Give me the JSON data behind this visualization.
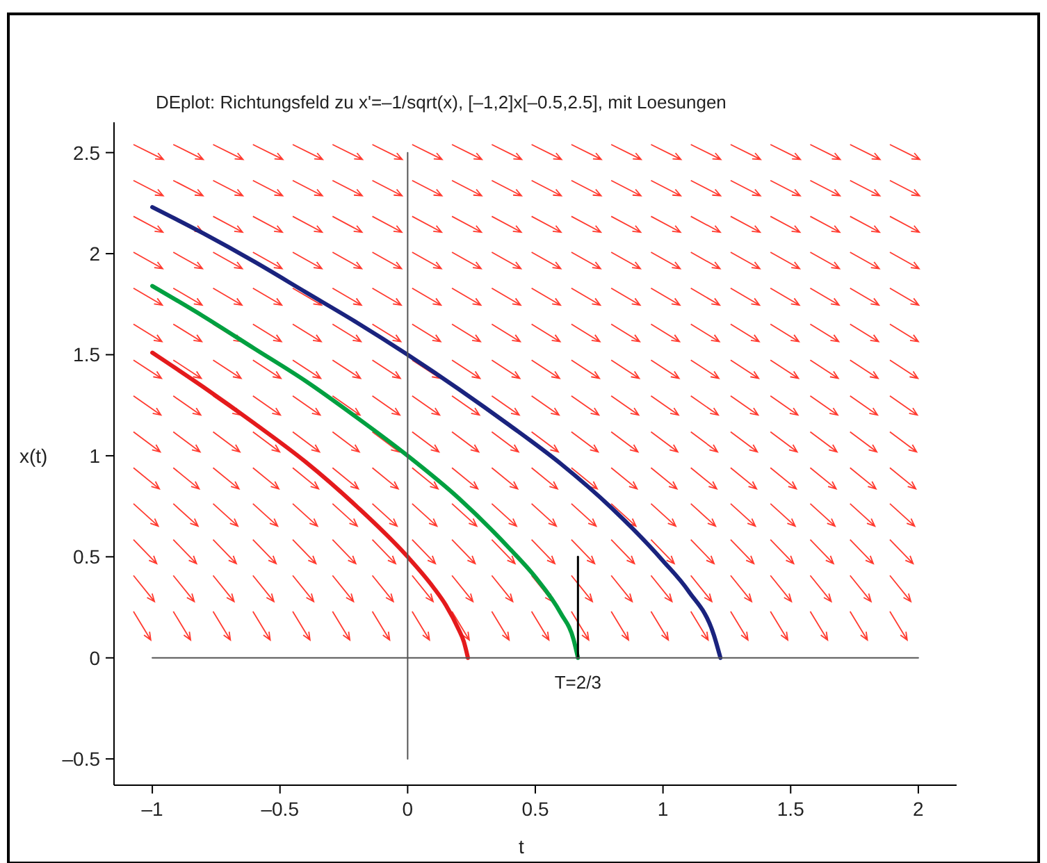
{
  "chart_data": {
    "type": "line",
    "title": "DEplot: Richtungsfeld zu x'=–1/sqrt(x), [–1,2]x[–0.5,2.5], mit Loesungen",
    "xlabel": "t",
    "ylabel": "x(t)",
    "xlim": [
      -1.15,
      2.15
    ],
    "ylim": [
      -0.63,
      2.65
    ],
    "xticks": [
      {
        "value": -1,
        "label": "–1"
      },
      {
        "value": -0.5,
        "label": "–0.5"
      },
      0,
      0.5,
      1,
      1.5,
      2
    ],
    "yticks": [
      {
        "value": -0.5,
        "label": "–0.5"
      },
      0,
      0.5,
      1,
      1.5,
      2,
      2.5
    ],
    "grid": false,
    "line_style": "solid",
    "annotations": [
      {
        "text": "T=2/3",
        "x": 0.667,
        "y": 0
      }
    ],
    "series": [
      {
        "color": "#e41a1c",
        "x": [
          -1,
          -0.8,
          -0.6,
          -0.4,
          -0.2,
          0,
          0.1,
          0.15,
          0.2,
          0.22,
          0.236
        ],
        "values": [
          1.51,
          1.34,
          1.16,
          0.97,
          0.75,
          0.5,
          0.35,
          0.26,
          0.14,
          0.08,
          0
        ]
      },
      {
        "color": "#00a040",
        "x": [
          -1,
          -0.8,
          -0.6,
          -0.4,
          -0.2,
          0,
          0.2,
          0.4,
          0.5,
          0.6,
          0.65,
          0.667
        ],
        "values": [
          1.84,
          1.69,
          1.53,
          1.37,
          1.19,
          1,
          0.79,
          0.54,
          0.4,
          0.22,
          0.09,
          0
        ]
      },
      {
        "color": "#1a237e",
        "x": [
          -1,
          -0.8,
          -0.6,
          -0.4,
          -0.2,
          0,
          0.2,
          0.4,
          0.6,
          0.8,
          1,
          1.1,
          1.2,
          1.225
        ],
        "values": [
          2.23,
          2.1,
          1.96,
          1.81,
          1.66,
          1.5,
          1.33,
          1.15,
          0.96,
          0.74,
          0.48,
          0.33,
          0.11,
          0
        ]
      },
      {
        "color": "#000000",
        "x": [
          0.667,
          0.667
        ],
        "values": [
          0,
          0.5
        ]
      },
      {
        "color": "#555555",
        "x": [
          -1,
          2
        ],
        "values": [
          0,
          0
        ]
      },
      {
        "color": "#555555",
        "x": [
          0,
          0
        ],
        "values": [
          -0.5,
          2.5
        ]
      }
    ]
  }
}
